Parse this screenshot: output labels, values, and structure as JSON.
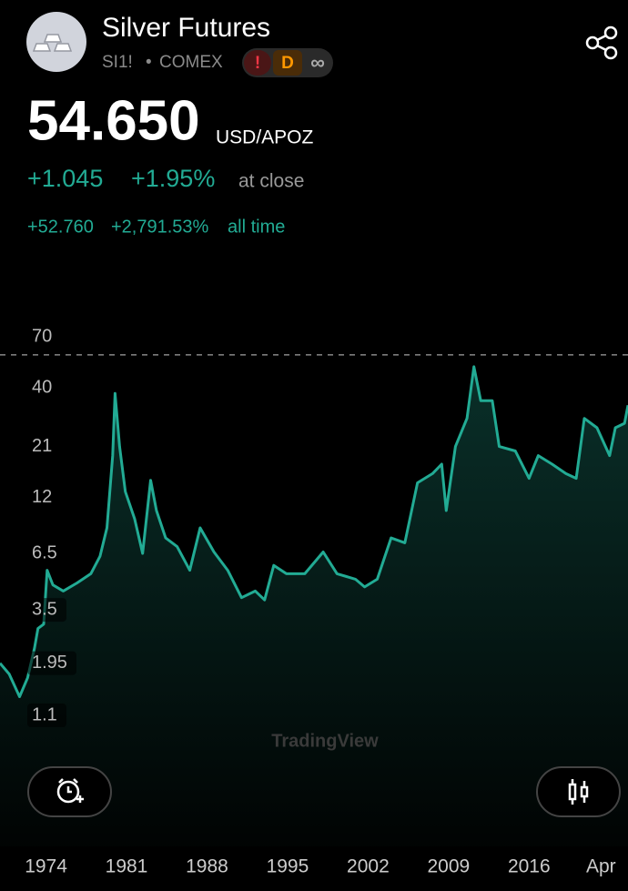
{
  "header": {
    "title": "Silver Futures",
    "symbol": "SI1!",
    "separator": "•",
    "exchange": "COMEX",
    "badges": [
      "!",
      "D",
      "∞"
    ]
  },
  "quote": {
    "price": "54.650",
    "currency": "USD/APOZ",
    "change": "+1.045",
    "change_percent": "+1.95%",
    "session": "at close",
    "all_time_change": "+52.760",
    "all_time_percent": "+2,791.53%",
    "all_time_label": "all time"
  },
  "chart_data": {
    "type": "line",
    "log_scale": true,
    "grid": false,
    "x": [
      1970.0,
      1970.8,
      1971.7,
      1972.4,
      1973.0,
      1973.3,
      1973.8,
      1974.1,
      1974.6,
      1975.5,
      1976.7,
      1977.9,
      1978.7,
      1979.3,
      1979.8,
      1980.0,
      1980.4,
      1980.9,
      1981.7,
      1982.4,
      1983.1,
      1983.6,
      1984.4,
      1985.4,
      1986.5,
      1987.4,
      1988.6,
      1989.8,
      1991.0,
      1992.2,
      1993.0,
      1993.8,
      1994.9,
      1996.5,
      1998.1,
      1999.3,
      2000.9,
      2001.7,
      2002.8,
      2004.0,
      2005.2,
      2006.3,
      2007.6,
      2008.4,
      2008.8,
      2009.6,
      2010.6,
      2011.2,
      2011.8,
      2012.8,
      2013.4,
      2014.8,
      2016.0,
      2016.8,
      2018.0,
      2019.2,
      2020.1,
      2020.8,
      2021.9,
      2023.0,
      2023.5,
      2024.3,
      2024.6
    ],
    "series": [
      {
        "color": "#22ab94",
        "values": [
          1.95,
          1.73,
          1.35,
          1.66,
          2.3,
          2.85,
          2.99,
          5.4,
          4.6,
          4.3,
          4.7,
          5.2,
          6.3,
          8.6,
          19.0,
          37.6,
          21.0,
          12.8,
          9.5,
          6.5,
          14.5,
          10.4,
          7.7,
          7.0,
          5.4,
          8.6,
          6.6,
          5.4,
          4.0,
          4.3,
          3.9,
          5.7,
          5.2,
          5.2,
          6.6,
          5.2,
          4.9,
          4.5,
          4.9,
          7.7,
          7.3,
          14.1,
          15.6,
          17.3,
          10.4,
          21.0,
          28.6,
          50.4,
          34.7,
          34.7,
          21.0,
          20.0,
          14.8,
          19.0,
          17.3,
          15.6,
          14.8,
          28.6,
          25.8,
          19.0,
          25.8,
          27.1,
          33
        ]
      }
    ],
    "xlim": [
      1970,
      2024.6
    ],
    "xticks": [
      1974,
      1981,
      1988,
      1995,
      2002,
      2009,
      2016,
      {
        "value": 2022.25,
        "label": "Apr"
      }
    ],
    "ylim": [
      1.1,
      70
    ],
    "yticks": [
      70,
      40,
      21,
      12,
      6.5,
      3.5,
      1.95,
      1.1
    ],
    "ref_line": 57.4,
    "watermark": "TradingView"
  }
}
